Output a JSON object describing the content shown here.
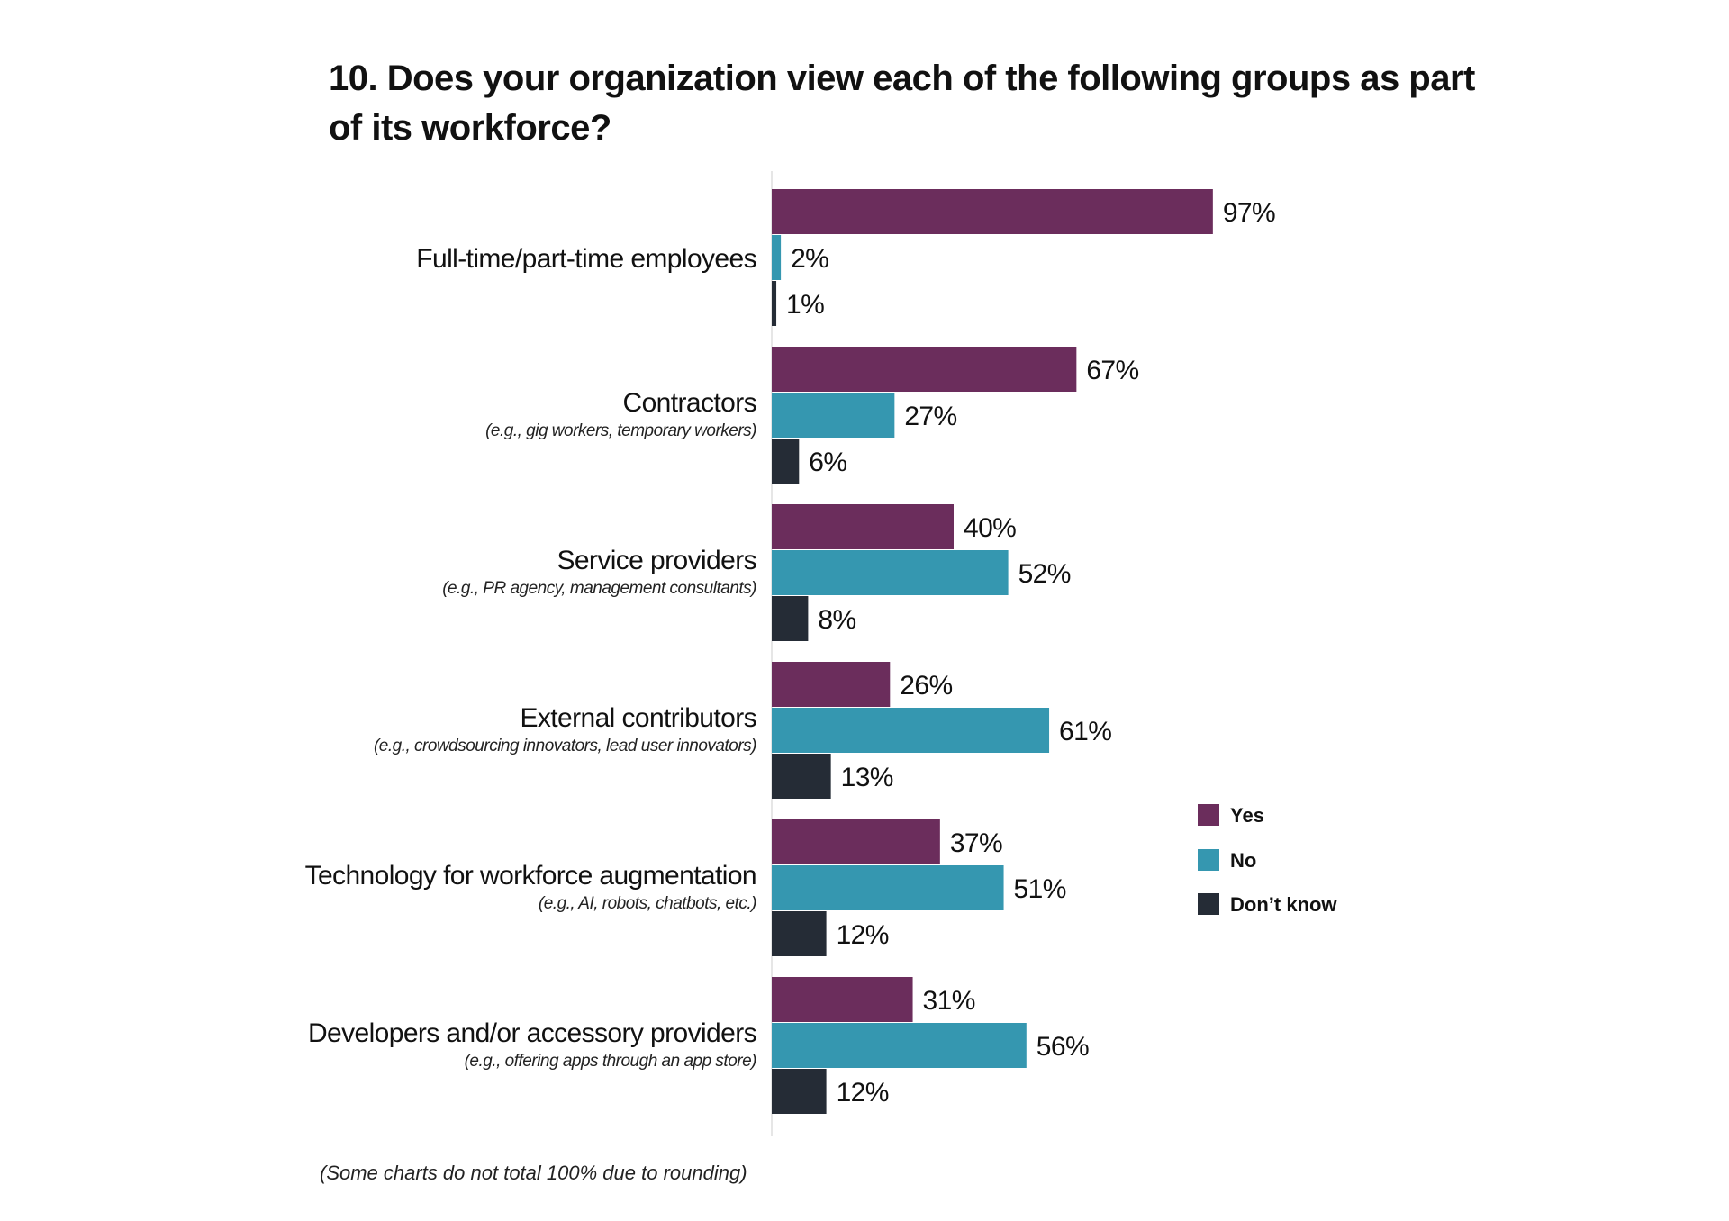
{
  "chart_data": {
    "type": "bar",
    "orientation": "horizontal",
    "title": "10. Does your organization view each of the following groups as part of its workforce?",
    "categories": [
      {
        "label": "Full-time/part-time employees",
        "sublabel": ""
      },
      {
        "label": "Contractors",
        "sublabel": "(e.g., gig workers, temporary workers)"
      },
      {
        "label": "Service providers",
        "sublabel": "(e.g., PR agency, management consultants)"
      },
      {
        "label": "External contributors",
        "sublabel": "(e.g., crowdsourcing innovators, lead user innovators)"
      },
      {
        "label": "Technology for workforce augmentation",
        "sublabel": "(e.g., AI, robots, chatbots, etc.)"
      },
      {
        "label": "Developers and/or accessory providers",
        "sublabel": "(e.g., offering apps through an app store)"
      }
    ],
    "series": [
      {
        "name": "Yes",
        "color": "#6b2d5c",
        "values": [
          97,
          67,
          40,
          26,
          37,
          31
        ]
      },
      {
        "name": "No",
        "color": "#3597b0",
        "values": [
          2,
          27,
          52,
          61,
          51,
          56
        ]
      },
      {
        "name": "Don’t know",
        "color": "#252c36",
        "values": [
          1,
          6,
          8,
          13,
          12,
          12
        ]
      }
    ],
    "value_suffix": "%",
    "xlim": [
      0,
      100
    ],
    "grid": false,
    "legend_position": "right"
  },
  "footnote": "(Some charts do not total 100% due to rounding)"
}
